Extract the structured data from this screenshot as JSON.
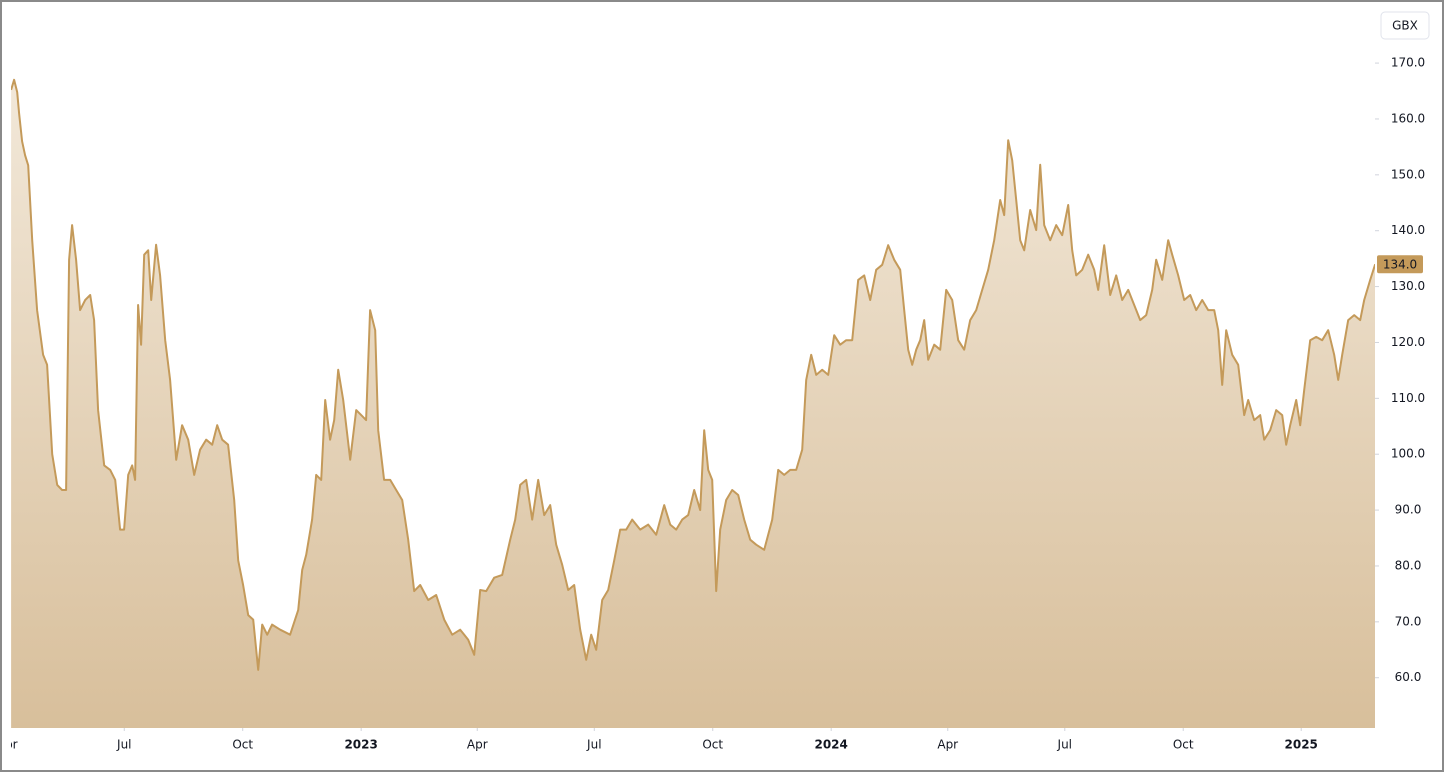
{
  "chart_data": {
    "type": "area",
    "unit": "GBX",
    "last_label": "134.0",
    "color": "#c49a5a",
    "fill_colors": [
      "#f2e8d9",
      "#d8bf9b"
    ],
    "grid": false,
    "xlim": [
      2022.255,
      2025.157
    ],
    "xticks": [
      {
        "value": 2022.247,
        "label": "Apr"
      },
      {
        "value": 2022.496,
        "label": "Jul"
      },
      {
        "value": 2022.748,
        "label": "Oct"
      },
      2023,
      {
        "value": 2023.247,
        "label": "Apr"
      },
      {
        "value": 2023.496,
        "label": "Jul"
      },
      {
        "value": 2023.748,
        "label": "Oct"
      },
      2024,
      {
        "value": 2024.248,
        "label": "Apr"
      },
      {
        "value": 2024.497,
        "label": "Jul"
      },
      {
        "value": 2024.749,
        "label": "Oct"
      },
      2025
    ],
    "ylim": [
      51,
      179.5
    ],
    "yticks": [
      {
        "value": 60,
        "label": "60.0"
      },
      {
        "value": 70,
        "label": "70.0"
      },
      {
        "value": 80,
        "label": "80.0"
      },
      {
        "value": 90,
        "label": "90.0"
      },
      {
        "value": 100,
        "label": "100.0"
      },
      {
        "value": 110,
        "label": "110.0"
      },
      {
        "value": 120,
        "label": "120.0"
      },
      {
        "value": 130,
        "label": "130.0"
      },
      {
        "value": 140,
        "label": "140.0"
      },
      {
        "value": 150,
        "label": "150.0"
      },
      {
        "value": 160,
        "label": "160.0"
      },
      {
        "value": 170,
        "label": "170.0"
      }
    ],
    "x": [
      2022.2553,
      2022.2617,
      2022.2681,
      2022.2723,
      2022.2787,
      2022.2851,
      2022.2915,
      2022.3,
      2022.3106,
      2022.3234,
      2022.3319,
      2022.3426,
      2022.3532,
      2022.3638,
      2022.3723,
      2022.3787,
      2022.3851,
      2022.3936,
      2022.4021,
      2022.4128,
      2022.4234,
      2022.4319,
      2022.4404,
      2022.4532,
      2022.466,
      2022.4766,
      2022.4872,
      2022.4957,
      2022.5043,
      2022.5128,
      2022.5191,
      2022.5255,
      2022.5319,
      2022.5383,
      2022.5468,
      2022.5532,
      2022.5638,
      2022.5723,
      2022.583,
      2022.5936,
      2022.6064,
      2022.6191,
      2022.6319,
      2022.6447,
      2022.6574,
      2022.6702,
      2022.683,
      2022.6936,
      2022.7043,
      2022.717,
      2022.7298,
      2022.7383,
      2022.7489,
      2022.7596,
      2022.7702,
      2022.7809,
      2022.7894,
      2022.8,
      2022.8106,
      2022.8277,
      2022.8489,
      2022.866,
      2022.8745,
      2022.883,
      2022.8957,
      2022.9043,
      2022.9149,
      2022.9234,
      2022.934,
      2022.9426,
      2022.9511,
      2022.9617,
      2022.9766,
      2022.9894,
      2023.0,
      2023.0106,
      2023.0191,
      2023.0298,
      2023.0362,
      2023.0489,
      2023.0617,
      2023.0745,
      2023.0872,
      2023.1,
      2023.1128,
      2023.1255,
      2023.1426,
      2023.1596,
      2023.1766,
      2023.1936,
      2023.2106,
      2023.2277,
      2023.2404,
      2023.2532,
      2023.266,
      2023.283,
      2023.3,
      2023.317,
      2023.3277,
      2023.3383,
      2023.3511,
      2023.3638,
      2023.3766,
      2023.3894,
      2023.4021,
      2023.4149,
      2023.4277,
      2023.4404,
      2023.4532,
      2023.466,
      2023.4787,
      2023.4894,
      2023.5,
      2023.5128,
      2023.5255,
      2023.5383,
      2023.5511,
      2023.5638,
      2023.5766,
      2023.5936,
      2023.6106,
      2023.6277,
      2023.6447,
      2023.6574,
      2023.6702,
      2023.683,
      2023.6957,
      2023.7085,
      2023.7213,
      2023.7298,
      2023.7383,
      2023.7468,
      2023.7553,
      2023.7638,
      2023.7766,
      2023.7894,
      2023.8021,
      2023.8149,
      2023.8277,
      2023.8404,
      2023.8574,
      2023.8745,
      2023.8872,
      2023.9,
      2023.9128,
      2023.9255,
      2023.9383,
      2023.9468,
      2023.9574,
      2023.9681,
      2023.9809,
      2023.9936,
      2024.0064,
      2024.0191,
      2024.0319,
      2024.0447,
      2024.0574,
      2024.0702,
      2024.083,
      2024.0957,
      2024.1085,
      2024.1213,
      2024.134,
      2024.1468,
      2024.1553,
      2024.1638,
      2024.1723,
      2024.1809,
      2024.1894,
      2024.1979,
      2024.2064,
      2024.2191,
      2024.2319,
      2024.2447,
      2024.2574,
      2024.2702,
      2024.283,
      2024.2957,
      2024.3085,
      2024.3213,
      2024.334,
      2024.3468,
      2024.3596,
      2024.3681,
      2024.3766,
      2024.3851,
      2024.3936,
      2024.4021,
      2024.4106,
      2024.4234,
      2024.4362,
      2024.4447,
      2024.4532,
      2024.466,
      2024.4787,
      2024.4915,
      2024.5043,
      2024.5128,
      2024.5213,
      2024.534,
      2024.5468,
      2024.5596,
      2024.5681,
      2024.5809,
      2024.5936,
      2024.6064,
      2024.6191,
      2024.6319,
      2024.6447,
      2024.6574,
      2024.6702,
      2024.683,
      2024.6915,
      2024.7043,
      2024.717,
      2024.7255,
      2024.7383,
      2024.7511,
      2024.7638,
      2024.7766,
      2024.7894,
      2024.8021,
      2024.8149,
      2024.8234,
      2024.8319,
      2024.8404,
      2024.8532,
      2024.866,
      2024.8787,
      2024.8872,
      2024.9,
      2024.9128,
      2024.9213,
      2024.934,
      2024.9468,
      2024.9596,
      2024.9681,
      2024.9766,
      2024.9894,
      2024.9979,
      2025.0064,
      2025.0191,
      2025.0319,
      2025.0447,
      2025.0574,
      2025.0702,
      2025.0787,
      2025.0872,
      2025.1,
      2025.1128,
      2025.1255,
      2025.134,
      2025.1468,
      2025.1574
    ],
    "values": [
      165.2,
      167,
      164.8,
      161,
      156,
      153.5,
      151.7,
      138.3,
      125.8,
      117.8,
      116,
      100,
      94.5,
      93.6,
      93.6,
      134.8,
      141,
      134.8,
      125.8,
      127.6,
      128.5,
      124,
      107.9,
      98,
      97.2,
      95.4,
      86.5,
      86.5,
      96.3,
      98,
      95.4,
      126.7,
      119.6,
      135.7,
      136.5,
      127.6,
      137.5,
      132,
      120.4,
      113.3,
      99,
      105.2,
      102.6,
      96.3,
      100.8,
      102.6,
      101.7,
      105.2,
      102.6,
      101.7,
      91.8,
      81,
      76.6,
      71.2,
      70.4,
      61.4,
      69.5,
      67.7,
      69.5,
      68.6,
      67.7,
      72.1,
      79.3,
      82,
      88.3,
      96.3,
      95.4,
      109.7,
      102.6,
      106.1,
      115.1,
      109.7,
      99,
      107.9,
      107,
      106.1,
      125.8,
      122.2,
      104.3,
      95.4,
      95.4,
      93.6,
      91.8,
      84.7,
      75.5,
      76.6,
      73.9,
      74.8,
      70.4,
      67.7,
      68.6,
      66.8,
      64.1,
      75.7,
      75.5,
      77.9,
      78.4,
      84.7,
      88.3,
      94.5,
      95.4,
      88.3,
      95.4,
      89.1,
      90.9,
      83.8,
      80.2,
      75.7,
      76.6,
      68.6,
      63.2,
      67.7,
      65,
      73.9,
      75.7,
      81,
      86.5,
      86.5,
      88.3,
      86.5,
      87.4,
      85.6,
      90.9,
      87.4,
      86.5,
      88.3,
      89.1,
      93.6,
      90,
      104.3,
      97.2,
      95.4,
      75.5,
      86.5,
      91.8,
      93.6,
      92.7,
      88.3,
      84.7,
      83.8,
      82.9,
      88.3,
      97.2,
      96.3,
      97.2,
      97.2,
      100.8,
      113.3,
      117.8,
      114.2,
      115.1,
      114.2,
      121.3,
      119.6,
      120.4,
      120.4,
      131.2,
      132,
      127.6,
      133,
      133.9,
      137.4,
      134.8,
      133,
      125.8,
      118.7,
      116,
      118.7,
      120.4,
      124,
      116.9,
      119.6,
      118.7,
      129.4,
      127.6,
      120.4,
      118.7,
      124,
      125.8,
      129.4,
      133,
      138.3,
      145.5,
      142.8,
      156.2,
      152.6,
      145.5,
      138.3,
      136.5,
      143.7,
      140.1,
      151.8,
      141,
      138.3,
      141,
      139.2,
      144.6,
      136.5,
      132,
      133,
      135.7,
      133,
      129.4,
      137.4,
      128.5,
      132,
      127.6,
      129.4,
      126.7,
      124,
      124.9,
      129.4,
      134.8,
      131.2,
      138.3,
      135.7,
      132,
      127.6,
      128.5,
      125.8,
      127.6,
      125.8,
      125.8,
      122.2,
      112.4,
      122.2,
      117.8,
      116,
      107,
      109.7,
      106.1,
      107,
      102.6,
      104.3,
      107.9,
      107,
      101.7,
      105.2,
      109.7,
      105.2,
      111.5,
      120.4,
      121,
      120.4,
      122.2,
      117.8,
      113.3,
      117.8,
      124,
      124.9,
      124,
      127.6,
      131.2,
      134
    ]
  }
}
